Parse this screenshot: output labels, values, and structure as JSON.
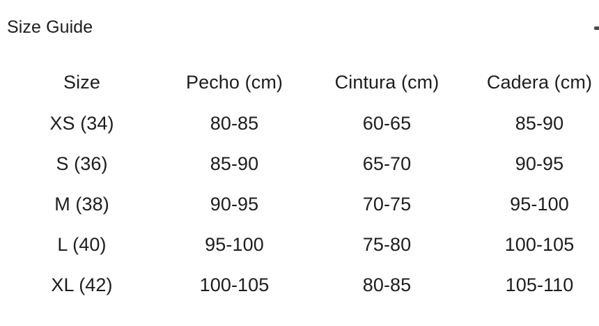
{
  "title": "Size Guide",
  "table": {
    "headers": [
      "Size",
      "Pecho (cm)",
      "Cintura (cm)",
      "Cadera (cm)"
    ],
    "rows": [
      [
        "XS (34)",
        "80-85",
        "60-65",
        "85-90"
      ],
      [
        "S (36)",
        "85-90",
        "65-70",
        "90-95"
      ],
      [
        "M (38)",
        "90-95",
        "70-75",
        "95-100"
      ],
      [
        "L (40)",
        "95-100",
        "75-80",
        "100-105"
      ],
      [
        "XL (42)",
        "100-105",
        "80-85",
        "105-110"
      ]
    ]
  },
  "colors": {
    "text": "#1d1d1f",
    "background": "#ffffff",
    "corner_mark": "#4a4a4c"
  }
}
